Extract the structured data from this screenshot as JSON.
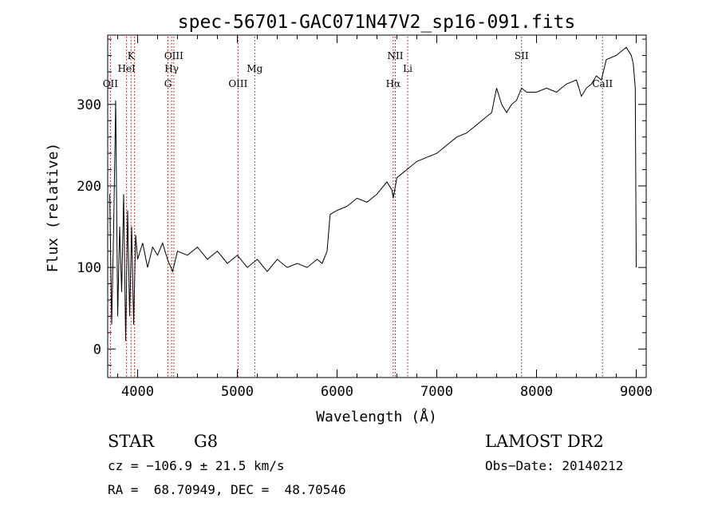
{
  "chart_data": {
    "type": "line",
    "title": "spec-56701-GAC071N47V2_sp16-091.fits",
    "xlabel": "Wavelength (Å)",
    "ylabel": "Flux (relative)",
    "xlim": [
      3700,
      9100
    ],
    "ylim": [
      -35,
      385
    ],
    "xticks": [
      4000,
      5000,
      6000,
      7000,
      8000,
      9000
    ],
    "yticks": [
      0,
      100,
      200,
      300
    ],
    "grid": false,
    "series": [
      {
        "name": "",
        "x": [
          3720,
          3740,
          3760,
          3780,
          3800,
          3820,
          3840,
          3860,
          3880,
          3900,
          3920,
          3940,
          3960,
          3980,
          4000,
          4050,
          4100,
          4150,
          4200,
          4250,
          4300,
          4350,
          4400,
          4500,
          4600,
          4700,
          4800,
          4900,
          5000,
          5100,
          5200,
          5300,
          5400,
          5500,
          5600,
          5700,
          5800,
          5850,
          5900,
          5930,
          6000,
          6100,
          6200,
          6300,
          6400,
          6500,
          6550,
          6563,
          6600,
          6700,
          6800,
          6900,
          7000,
          7100,
          7200,
          7300,
          7400,
          7500,
          7550,
          7600,
          7650,
          7700,
          7750,
          7800,
          7850,
          7900,
          8000,
          8100,
          8200,
          8300,
          8400,
          8450,
          8500,
          8550,
          8600,
          8650,
          8700,
          8800,
          8900,
          8950,
          8970,
          8990,
          9000
        ],
        "y": [
          190,
          30,
          150,
          305,
          40,
          150,
          70,
          190,
          10,
          170,
          40,
          150,
          30,
          140,
          110,
          130,
          100,
          125,
          115,
          130,
          110,
          95,
          120,
          115,
          125,
          110,
          120,
          105,
          115,
          100,
          110,
          95,
          110,
          100,
          105,
          100,
          110,
          105,
          120,
          165,
          170,
          175,
          185,
          180,
          190,
          205,
          195,
          185,
          210,
          220,
          230,
          235,
          240,
          250,
          260,
          265,
          275,
          285,
          290,
          320,
          300,
          290,
          300,
          305,
          320,
          315,
          315,
          320,
          315,
          325,
          330,
          310,
          320,
          325,
          335,
          330,
          355,
          360,
          370,
          360,
          350,
          320,
          100
        ]
      }
    ],
    "lines": [
      {
        "wave": 3727,
        "label": "OII",
        "row": 3
      },
      {
        "wave": 3889,
        "label": "HeI",
        "row": 2
      },
      {
        "wave": 3934,
        "label": "K",
        "row": 1
      },
      {
        "wave": 3969,
        "label": "",
        "row": 0
      },
      {
        "wave": 4304,
        "label": "G",
        "row": 3
      },
      {
        "wave": 4341,
        "label": "Hγ",
        "row": 2
      },
      {
        "wave": 4363,
        "label": "OIII",
        "row": 1
      },
      {
        "wave": 5007,
        "label": "OIII",
        "row": 3
      },
      {
        "wave": 5175,
        "label": "Mg",
        "row": 2
      },
      {
        "wave": 6563,
        "label": "Hα",
        "row": 3
      },
      {
        "wave": 6584,
        "label": "NII",
        "row": 1
      },
      {
        "wave": 6708,
        "label": "Li",
        "row": 2
      },
      {
        "wave": 7850,
        "label": "SII",
        "row": 1
      },
      {
        "wave": 8662,
        "label": "CaII",
        "row": 3
      }
    ]
  },
  "info": {
    "object_class": "STAR",
    "subclass": "G8",
    "survey": "LAMOST DR2",
    "velocity": "cz = −106.9 ± 21.5 km/s",
    "obs_date": "Obs−Date: 20140212",
    "coords": "RA =  68.70949, DEC =  48.70546"
  }
}
